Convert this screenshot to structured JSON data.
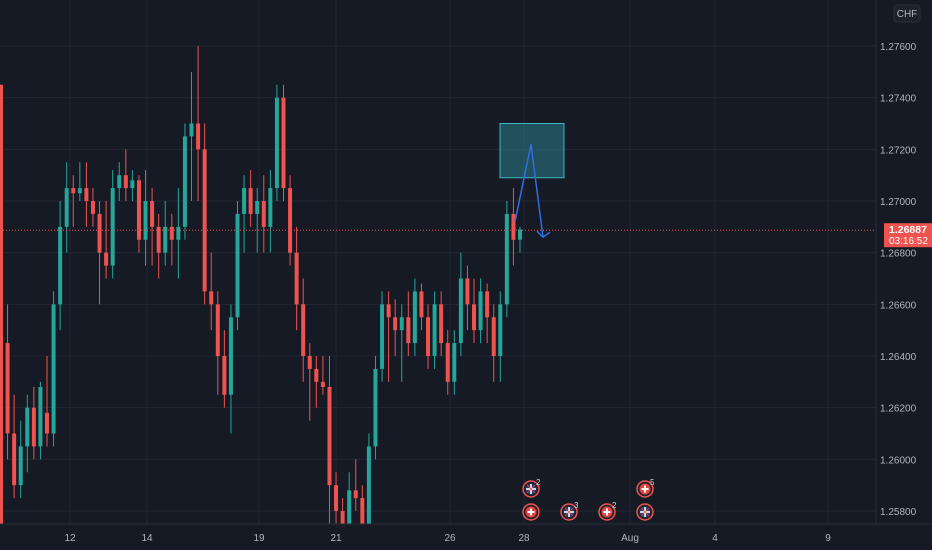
{
  "chart_data": {
    "type": "candlestick",
    "currency": "CHF",
    "ylim": [
      1.257,
      1.2775
    ],
    "y_ticks": [
      "1.27600",
      "1.27400",
      "1.27200",
      "1.27000",
      "1.26800",
      "1.26600",
      "1.26400",
      "1.26200",
      "1.26000",
      "1.25800"
    ],
    "x_ticks": [
      "12",
      "14",
      "19",
      "21",
      "26",
      "28",
      "Aug",
      "4",
      "9"
    ],
    "last_price": "1.26887",
    "countdown": "03:16:52",
    "up_color": "#26a69a",
    "down_color": "#ef5350",
    "box_color": "#2d7d8c",
    "arrow_color": "#2f6fe0",
    "event_badges": [
      {
        "icon": "uk-flag-icon",
        "count": "2"
      },
      {
        "icon": "swiss-flag-icon",
        "count": ""
      },
      {
        "icon": "uk-flag-icon",
        "count": "3"
      },
      {
        "icon": "swiss-flag-icon",
        "count": "2"
      },
      {
        "icon": "swiss-flag-icon",
        "count": "5"
      },
      {
        "icon": "uk-flag-icon",
        "count": ""
      }
    ],
    "candles": [
      [
        1.2745,
        1.2745,
        1.257,
        1.257
      ],
      [
        1.2645,
        1.266,
        1.26,
        1.261
      ],
      [
        1.261,
        1.2625,
        1.2585,
        1.259
      ],
      [
        1.259,
        1.2615,
        1.2585,
        1.2605
      ],
      [
        1.2605,
        1.2625,
        1.2595,
        1.262
      ],
      [
        1.262,
        1.2628,
        1.26,
        1.2605
      ],
      [
        1.2605,
        1.263,
        1.26,
        1.2628
      ],
      [
        1.2618,
        1.264,
        1.2605,
        1.261
      ],
      [
        1.261,
        1.2665,
        1.2605,
        1.266
      ],
      [
        1.266,
        1.27,
        1.265,
        1.269
      ],
      [
        1.269,
        1.2715,
        1.268,
        1.2705
      ],
      [
        1.2705,
        1.271,
        1.269,
        1.2703
      ],
      [
        1.2703,
        1.2715,
        1.27,
        1.2705
      ],
      [
        1.2705,
        1.2715,
        1.269,
        1.27
      ],
      [
        1.27,
        1.2705,
        1.269,
        1.2695
      ],
      [
        1.2695,
        1.27,
        1.266,
        1.268
      ],
      [
        1.268,
        1.27,
        1.267,
        1.2675
      ],
      [
        1.2675,
        1.2712,
        1.267,
        1.2705
      ],
      [
        1.2705,
        1.2715,
        1.27,
        1.271
      ],
      [
        1.271,
        1.272,
        1.27,
        1.2705
      ],
      [
        1.2705,
        1.2712,
        1.27,
        1.2708
      ],
      [
        1.2708,
        1.271,
        1.268,
        1.2685
      ],
      [
        1.2685,
        1.2712,
        1.2675,
        1.27
      ],
      [
        1.27,
        1.2705,
        1.2675,
        1.269
      ],
      [
        1.269,
        1.2695,
        1.267,
        1.268
      ],
      [
        1.268,
        1.27,
        1.2675,
        1.269
      ],
      [
        1.269,
        1.2695,
        1.2675,
        1.2685
      ],
      [
        1.2685,
        1.2705,
        1.267,
        1.269
      ],
      [
        1.269,
        1.273,
        1.2685,
        1.2725
      ],
      [
        1.2725,
        1.275,
        1.27,
        1.273
      ],
      [
        1.273,
        1.276,
        1.27,
        1.272
      ],
      [
        1.272,
        1.273,
        1.266,
        1.2665
      ],
      [
        1.2665,
        1.268,
        1.265,
        1.266
      ],
      [
        1.266,
        1.2665,
        1.2625,
        1.264
      ],
      [
        1.264,
        1.265,
        1.262,
        1.2625
      ],
      [
        1.2625,
        1.266,
        1.261,
        1.2655
      ],
      [
        1.2655,
        1.27,
        1.265,
        1.2695
      ],
      [
        1.2695,
        1.271,
        1.268,
        1.2705
      ],
      [
        1.2705,
        1.2712,
        1.269,
        1.2695
      ],
      [
        1.2695,
        1.2705,
        1.268,
        1.27
      ],
      [
        1.27,
        1.271,
        1.268,
        1.269
      ],
      [
        1.269,
        1.2712,
        1.268,
        1.2705
      ],
      [
        1.2705,
        1.2745,
        1.27,
        1.274
      ],
      [
        1.274,
        1.2745,
        1.27,
        1.2705
      ],
      [
        1.2705,
        1.271,
        1.2675,
        1.268
      ],
      [
        1.268,
        1.269,
        1.265,
        1.266
      ],
      [
        1.266,
        1.267,
        1.263,
        1.264
      ],
      [
        1.264,
        1.2645,
        1.2615,
        1.2635
      ],
      [
        1.2635,
        1.264,
        1.262,
        1.263
      ],
      [
        1.263,
        1.264,
        1.2625,
        1.2628
      ],
      [
        1.2628,
        1.264,
        1.2575,
        1.259
      ],
      [
        1.259,
        1.2595,
        1.257,
        1.258
      ],
      [
        1.258,
        1.2585,
        1.257,
        1.2575
      ],
      [
        1.2575,
        1.2595,
        1.257,
        1.2588
      ],
      [
        1.2588,
        1.26,
        1.258,
        1.2585
      ],
      [
        1.2585,
        1.259,
        1.257,
        1.2575
      ],
      [
        1.2575,
        1.261,
        1.257,
        1.2605
      ],
      [
        1.2605,
        1.264,
        1.26,
        1.2635
      ],
      [
        1.2635,
        1.2665,
        1.263,
        1.266
      ],
      [
        1.266,
        1.2665,
        1.263,
        1.2655
      ],
      [
        1.2655,
        1.2662,
        1.264,
        1.265
      ],
      [
        1.265,
        1.266,
        1.263,
        1.2655
      ],
      [
        1.2655,
        1.2665,
        1.264,
        1.2645
      ],
      [
        1.2645,
        1.267,
        1.264,
        1.2665
      ],
      [
        1.2665,
        1.2668,
        1.265,
        1.2655
      ],
      [
        1.2655,
        1.266,
        1.2635,
        1.264
      ],
      [
        1.264,
        1.2665,
        1.2635,
        1.266
      ],
      [
        1.266,
        1.2665,
        1.264,
        1.2645
      ],
      [
        1.2645,
        1.265,
        1.2625,
        1.263
      ],
      [
        1.263,
        1.265,
        1.2625,
        1.2645
      ],
      [
        1.2645,
        1.268,
        1.264,
        1.267
      ],
      [
        1.267,
        1.2675,
        1.265,
        1.266
      ],
      [
        1.266,
        1.267,
        1.2645,
        1.265
      ],
      [
        1.265,
        1.267,
        1.2645,
        1.2665
      ],
      [
        1.2665,
        1.2668,
        1.2645,
        1.2655
      ],
      [
        1.2655,
        1.266,
        1.263,
        1.264
      ],
      [
        1.264,
        1.2665,
        1.263,
        1.266
      ],
      [
        1.266,
        1.27,
        1.2655,
        1.2695
      ],
      [
        1.2695,
        1.2705,
        1.2675,
        1.2685
      ],
      [
        1.2685,
        1.269,
        1.268,
        1.2689
      ]
    ]
  }
}
